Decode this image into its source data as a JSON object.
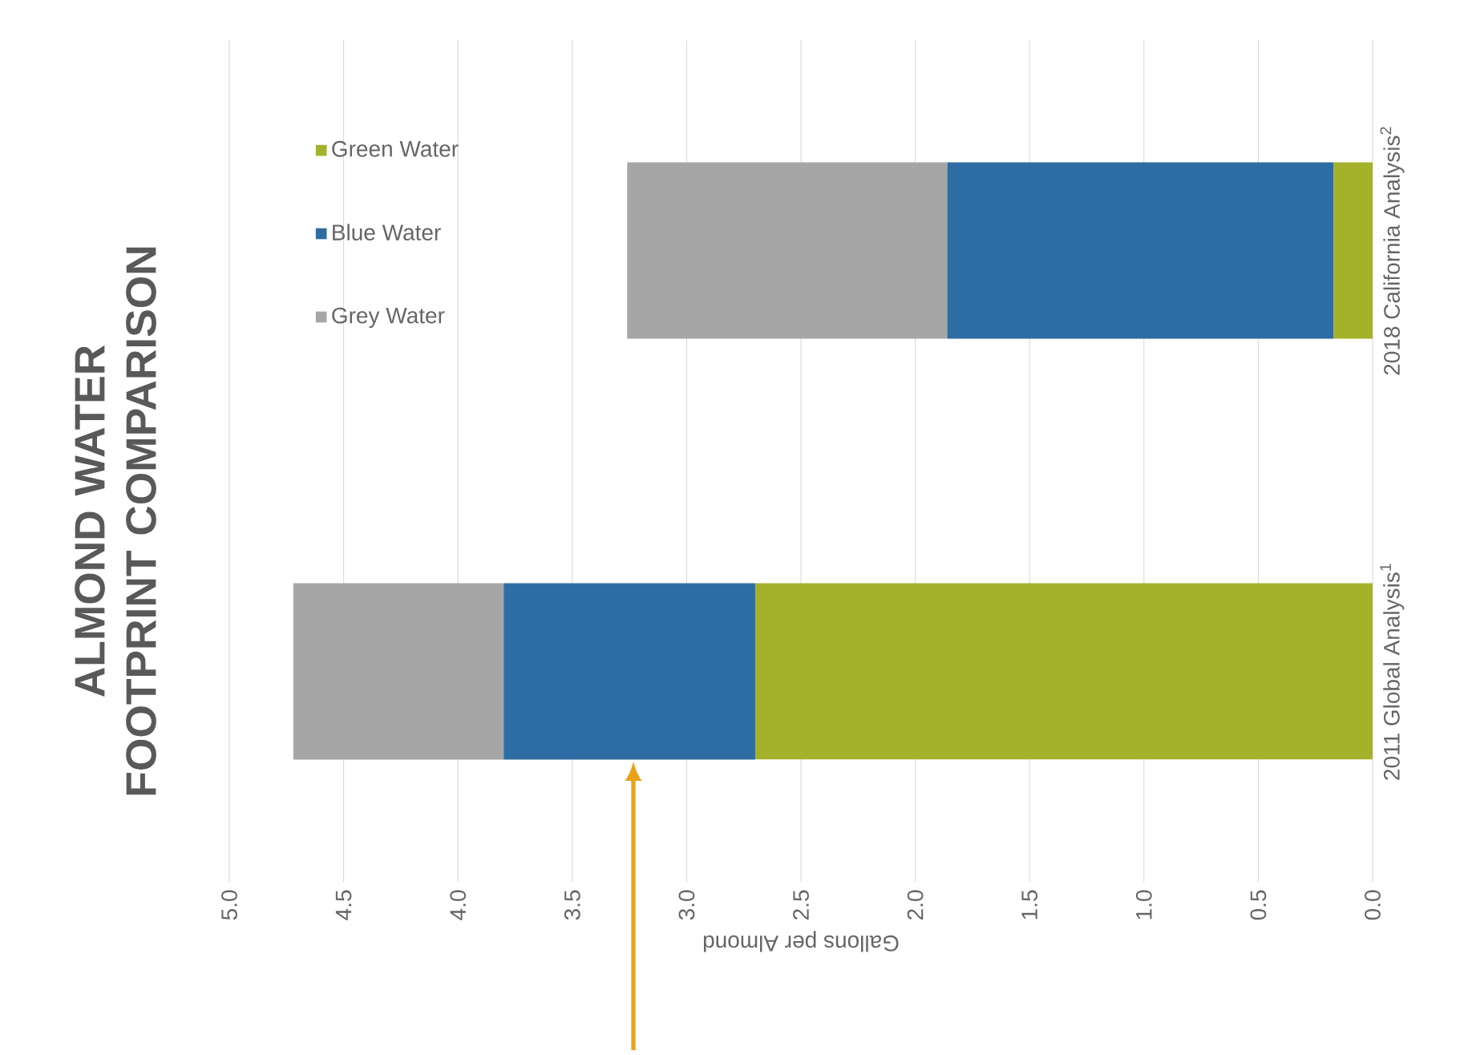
{
  "chart_data": {
    "type": "bar",
    "stacked": true,
    "orientation": "horizontal",
    "title": "ALMOND WATER FOOTPRINT COMPARISON",
    "xlabel": "Gallons per Almond",
    "categories": [
      "2018 California Analysis$^{2}$",
      "2011 Global Analysis$^{1}$"
    ],
    "series": [
      {
        "name": "Green Water",
        "color": "#a3b22a",
        "values": [
          0.17,
          2.7
        ]
      },
      {
        "name": "Blue Water",
        "color": "#2e6da3",
        "values": [
          1.69,
          1.1
        ]
      },
      {
        "name": "Grey Water",
        "color": "#a6a6a6",
        "values": [
          1.4,
          0.92
        ]
      }
    ],
    "xlim": [
      5,
      0
    ],
    "xticks": [
      {
        "value": 5,
        "label": "5.0"
      },
      {
        "value": 4.5,
        "label": "4.5"
      },
      {
        "value": 4,
        "label": "4.0"
      },
      {
        "value": 3.5,
        "label": "3.5"
      },
      {
        "value": 3,
        "label": "3.0"
      },
      {
        "value": 2.5,
        "label": "2.5"
      },
      {
        "value": 2,
        "label": "2.0"
      },
      {
        "value": 1.5,
        "label": "1.5"
      },
      {
        "value": 1,
        "label": "1.0"
      },
      {
        "value": 0.5,
        "label": "0.5"
      },
      {
        "value": 0,
        "label": "0.0"
      }
    ],
    "grid": "x",
    "legend": "top left"
  }
}
